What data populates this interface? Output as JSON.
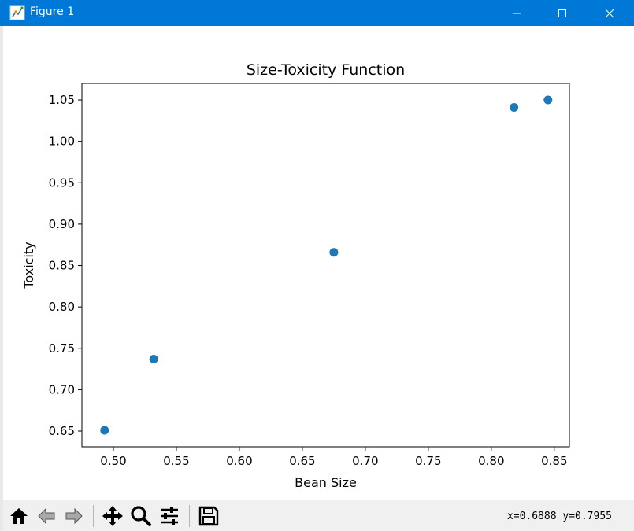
{
  "window": {
    "title": "Figure 1"
  },
  "chart_data": {
    "type": "scatter",
    "title": "Size-Toxicity Function",
    "xlabel": "Bean Size",
    "ylabel": "Toxicity",
    "xlim": [
      0.475,
      0.862
    ],
    "ylim": [
      0.631,
      1.07
    ],
    "xticks": [
      0.5,
      0.55,
      0.6,
      0.65,
      0.7,
      0.75,
      0.8,
      0.85
    ],
    "xtick_labels": [
      "0.50",
      "0.55",
      "0.60",
      "0.65",
      "0.70",
      "0.75",
      "0.80",
      "0.85"
    ],
    "yticks": [
      0.65,
      0.7,
      0.75,
      0.8,
      0.85,
      0.9,
      0.95,
      1.0,
      1.05
    ],
    "ytick_labels": [
      "0.65",
      "0.70",
      "0.75",
      "0.80",
      "0.85",
      "0.90",
      "0.95",
      "1.00",
      "1.05"
    ],
    "grid": false,
    "series": [
      {
        "color": "#1f77b4",
        "points": [
          {
            "x": 0.493,
            "y": 0.651
          },
          {
            "x": 0.532,
            "y": 0.737
          },
          {
            "x": 0.675,
            "y": 0.866
          },
          {
            "x": 0.818,
            "y": 1.041
          },
          {
            "x": 0.845,
            "y": 1.05
          }
        ]
      }
    ]
  },
  "toolbar": {
    "buttons": [
      {
        "name": "home-button",
        "icon": "home-icon"
      },
      {
        "name": "back-button",
        "icon": "back-arrow-icon"
      },
      {
        "name": "forward-button",
        "icon": "forward-arrow-icon"
      },
      {
        "name": "pan-button",
        "icon": "move-icon"
      },
      {
        "name": "zoom-button",
        "icon": "magnifier-icon"
      },
      {
        "name": "configure-subplots-button",
        "icon": "sliders-icon"
      },
      {
        "name": "save-button",
        "icon": "floppy-disk-icon"
      }
    ],
    "coord_x": "x=0.6888",
    "coord_y": "y=0.7955"
  }
}
